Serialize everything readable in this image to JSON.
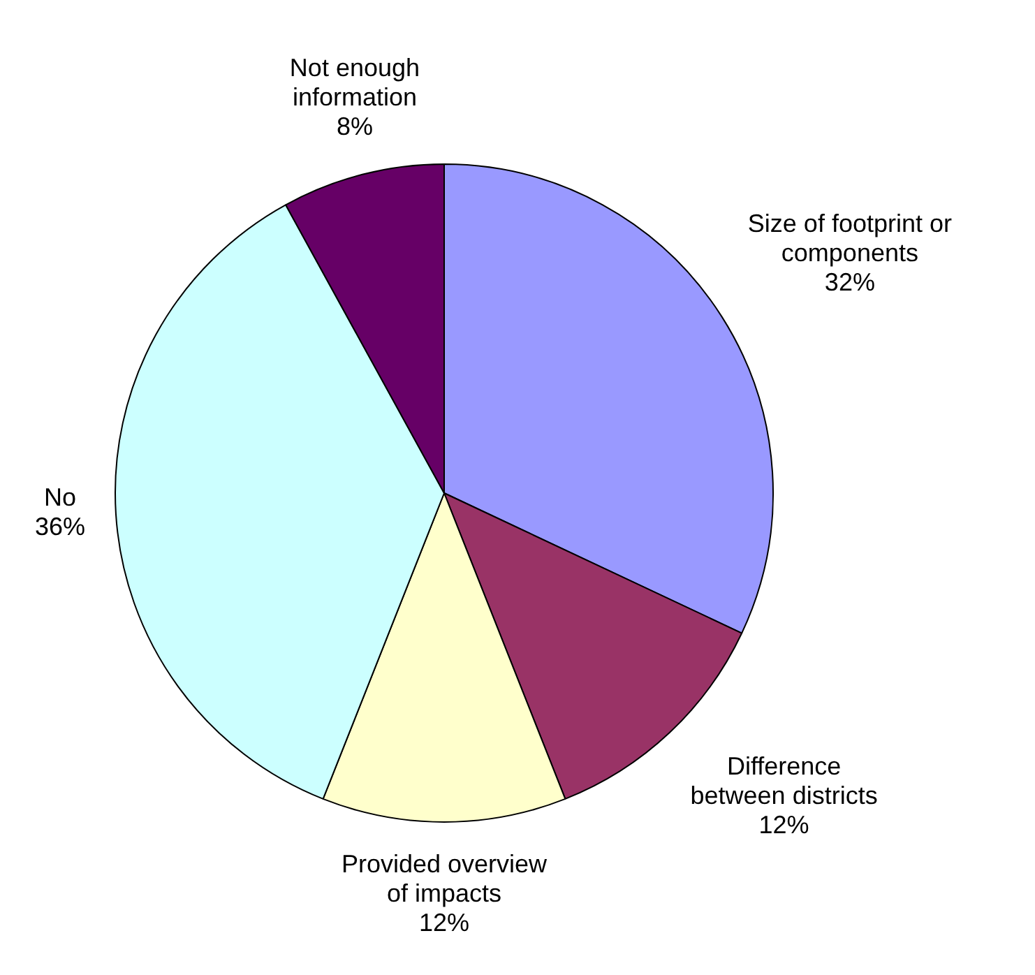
{
  "chart_data": {
    "type": "pie",
    "categories": [
      "Size of footprint or\ncomponents",
      "Difference\nbetween districts",
      "Provided overview\nof impacts",
      "No",
      "Not enough\ninformation"
    ],
    "values": [
      32,
      12,
      12,
      36,
      8
    ],
    "colors": [
      "#9999ff",
      "#993366",
      "#ffffcc",
      "#ccffff",
      "#660066"
    ],
    "value_labels": [
      "32%",
      "12%",
      "12%",
      "36%",
      "8%"
    ],
    "legend": false
  }
}
